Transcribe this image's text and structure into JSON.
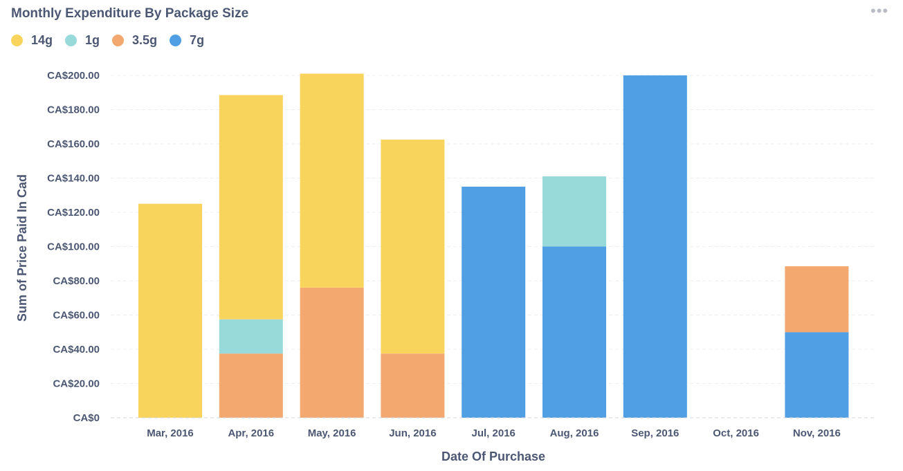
{
  "header": {
    "title": "Monthly Expenditure By Package Size",
    "more_label": "•••"
  },
  "legend": [
    {
      "label": "14g",
      "color": "#F9D45C"
    },
    {
      "label": "1g",
      "color": "#98D9D9"
    },
    {
      "label": "3.5g",
      "color": "#F2A86F"
    },
    {
      "label": "7g",
      "color": "#509EE3"
    }
  ],
  "chart_data": {
    "type": "bar",
    "stacked": true,
    "title": "Monthly Expenditure By Package Size",
    "xlabel": "Date Of Purchase",
    "ylabel": "Sum of Price Paid In Cad",
    "categories": [
      "Mar, 2016",
      "Apr, 2016",
      "May, 2016",
      "Jun, 2016",
      "Jul, 2016",
      "Aug, 2016",
      "Sep, 2016",
      "Oct, 2016",
      "Nov, 2016"
    ],
    "series": [
      {
        "name": "7g",
        "color": "#509EE3",
        "values": [
          0,
          0,
          0,
          0,
          135,
          100,
          200,
          0,
          50
        ]
      },
      {
        "name": "3.5g",
        "color": "#F2A86F",
        "values": [
          0,
          37.5,
          76,
          37.5,
          0,
          0,
          0,
          0,
          38.5
        ]
      },
      {
        "name": "1g",
        "color": "#98D9D9",
        "values": [
          0,
          20,
          0,
          0,
          0,
          41,
          0,
          0,
          0
        ]
      },
      {
        "name": "14g",
        "color": "#F9D45C",
        "values": [
          125,
          131,
          125,
          125,
          0,
          0,
          0,
          0,
          0
        ]
      }
    ],
    "ylim": [
      0,
      200
    ],
    "yticks": [
      0,
      20,
      40,
      60,
      80,
      100,
      120,
      140,
      160,
      180,
      200
    ],
    "ytick_labels": [
      "CA$0",
      "CA$20.00",
      "CA$40.00",
      "CA$60.00",
      "CA$80.00",
      "CA$100.00",
      "CA$120.00",
      "CA$140.00",
      "CA$160.00",
      "CA$180.00",
      "CA$200.00"
    ],
    "grid": true,
    "legend_position": "top-left"
  }
}
